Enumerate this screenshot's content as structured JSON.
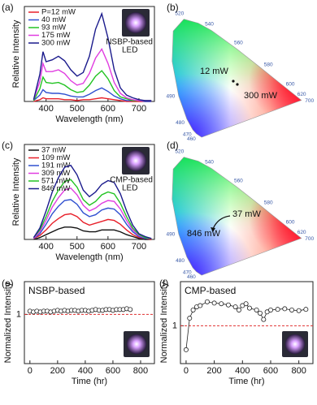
{
  "chart_data": [
    {
      "type": "line",
      "panel_label": "(a)",
      "ylabel": "Relative Intensity",
      "xlabel": "Wavelength (nm)",
      "xlim": [
        330,
        750
      ],
      "xticks": [
        400,
        500,
        600,
        700
      ],
      "ylim": [
        0,
        1.05
      ],
      "inset_label": [
        "NSBP-based",
        "LED"
      ],
      "x": [
        360,
        380,
        390,
        400,
        420,
        440,
        460,
        480,
        500,
        520,
        540,
        560,
        580,
        600,
        620,
        640,
        660,
        680,
        700,
        720,
        740
      ],
      "series": [
        {
          "name": "P=12 mW",
          "color": "#e8202a",
          "values": [
            0,
            0.02,
            0.04,
            0.03,
            0.03,
            0.03,
            0.02,
            0.02,
            0.01,
            0.02,
            0.02,
            0.03,
            0.04,
            0.03,
            0.02,
            0.01,
            0,
            0,
            0,
            0,
            0
          ]
        },
        {
          "name": "40 mW",
          "color": "#3050d0",
          "values": [
            0.01,
            0.07,
            0.13,
            0.1,
            0.09,
            0.09,
            0.08,
            0.06,
            0.05,
            0.05,
            0.08,
            0.12,
            0.15,
            0.11,
            0.06,
            0.03,
            0.01,
            0.01,
            0.01,
            0,
            0
          ]
        },
        {
          "name": "93 mW",
          "color": "#22c322",
          "values": [
            0.01,
            0.14,
            0.27,
            0.21,
            0.2,
            0.21,
            0.18,
            0.13,
            0.1,
            0.11,
            0.18,
            0.28,
            0.34,
            0.25,
            0.12,
            0.05,
            0.03,
            0.01,
            0.01,
            0.01,
            0.01
          ]
        },
        {
          "name": "175 mW",
          "color": "#e03ce0",
          "values": [
            0.02,
            0.22,
            0.42,
            0.33,
            0.33,
            0.35,
            0.31,
            0.23,
            0.18,
            0.2,
            0.31,
            0.48,
            0.58,
            0.42,
            0.21,
            0.09,
            0.04,
            0.02,
            0.01,
            0.01,
            0.01
          ]
        },
        {
          "name": "300 mW",
          "color": "#1a1a8c",
          "values": [
            0.02,
            0.3,
            0.55,
            0.44,
            0.46,
            0.5,
            0.45,
            0.35,
            0.28,
            0.32,
            0.5,
            0.8,
            0.97,
            0.7,
            0.35,
            0.15,
            0.07,
            0.04,
            0.02,
            0.01,
            0.01
          ]
        }
      ]
    },
    {
      "type": "cie",
      "panel_label": "(b)",
      "wavelengths": [
        460,
        470,
        480,
        490,
        520,
        540,
        560,
        580,
        600,
        620,
        700
      ],
      "annotations": [
        "12 mW",
        "300 mW"
      ]
    },
    {
      "type": "line",
      "panel_label": "(c)",
      "ylabel": "Relative Intensity",
      "xlabel": "Wavelength (nm)",
      "xlim": [
        330,
        750
      ],
      "xticks": [
        400,
        500,
        600,
        700
      ],
      "ylim": [
        0,
        1.0
      ],
      "inset_label": [
        "CMP-based",
        "LED"
      ],
      "x": [
        360,
        380,
        400,
        420,
        440,
        460,
        480,
        500,
        520,
        540,
        560,
        580,
        600,
        620,
        640,
        660,
        680,
        700,
        720,
        740
      ],
      "series": [
        {
          "name": "37 mW",
          "color": "#111111",
          "values": [
            0,
            0.02,
            0.05,
            0.08,
            0.11,
            0.13,
            0.13,
            0.12,
            0.09,
            0.08,
            0.08,
            0.1,
            0.1,
            0.1,
            0.08,
            0.05,
            0.03,
            0.01,
            0,
            0
          ]
        },
        {
          "name": "109 mW",
          "color": "#e8202a",
          "values": [
            0.01,
            0.04,
            0.1,
            0.17,
            0.22,
            0.26,
            0.27,
            0.24,
            0.18,
            0.15,
            0.17,
            0.19,
            0.21,
            0.2,
            0.16,
            0.1,
            0.05,
            0.02,
            0.01,
            0
          ]
        },
        {
          "name": "191 mW",
          "color": "#3050d0",
          "values": [
            0.01,
            0.06,
            0.16,
            0.27,
            0.35,
            0.41,
            0.42,
            0.37,
            0.28,
            0.24,
            0.26,
            0.31,
            0.33,
            0.32,
            0.26,
            0.16,
            0.08,
            0.03,
            0.01,
            0.01
          ]
        },
        {
          "name": "309 mW",
          "color": "#e03ce0",
          "values": [
            0.01,
            0.08,
            0.2,
            0.34,
            0.44,
            0.52,
            0.54,
            0.47,
            0.36,
            0.3,
            0.33,
            0.38,
            0.41,
            0.4,
            0.32,
            0.2,
            0.1,
            0.04,
            0.02,
            0.01
          ]
        },
        {
          "name": "571 mW",
          "color": "#22c322",
          "values": [
            0.02,
            0.1,
            0.24,
            0.4,
            0.52,
            0.61,
            0.63,
            0.55,
            0.42,
            0.36,
            0.4,
            0.47,
            0.5,
            0.48,
            0.38,
            0.24,
            0.12,
            0.05,
            0.02,
            0.01
          ]
        },
        {
          "name": "846 mW",
          "color": "#1a1a8c",
          "values": [
            0.02,
            0.12,
            0.3,
            0.5,
            0.65,
            0.76,
            0.78,
            0.68,
            0.52,
            0.45,
            0.5,
            0.58,
            0.62,
            0.6,
            0.48,
            0.3,
            0.15,
            0.06,
            0.03,
            0.01
          ]
        }
      ]
    },
    {
      "type": "cie",
      "panel_label": "(d)",
      "wavelengths": [
        460,
        470,
        480,
        490,
        520,
        540,
        560,
        580,
        600,
        620,
        700
      ],
      "annotations": [
        "37 mW",
        "846 mW"
      ]
    },
    {
      "type": "scatter",
      "panel_label": "(e)",
      "ylabel": "Normalized Intensity",
      "xlabel": "Time (hr)",
      "inset_label": [
        "NSBP-based"
      ],
      "xlim": [
        -40,
        900
      ],
      "xticks": [
        0,
        200,
        400,
        600,
        800
      ],
      "ylim": [
        0.4,
        1.4
      ],
      "yticks": [
        1
      ],
      "reference_line": 1,
      "connect": false,
      "x": [
        0,
        25,
        50,
        75,
        100,
        125,
        150,
        175,
        200,
        225,
        250,
        275,
        300,
        325,
        350,
        375,
        400,
        425,
        450,
        475,
        500,
        525,
        550,
        575,
        600,
        625,
        650,
        675,
        700,
        725
      ],
      "values": [
        1.04,
        1.03,
        1.04,
        1.03,
        1.04,
        1.04,
        1.03,
        1.04,
        1.05,
        1.04,
        1.05,
        1.04,
        1.05,
        1.05,
        1.04,
        1.05,
        1.05,
        1.04,
        1.05,
        1.06,
        1.05,
        1.05,
        1.06,
        1.06,
        1.05,
        1.06,
        1.06,
        1.06,
        1.07,
        1.06
      ]
    },
    {
      "type": "scatter",
      "panel_label": "(f)",
      "ylabel": "Normalized Intensity",
      "xlabel": "Time (hr)",
      "inset_label": [
        "CMP-based"
      ],
      "xlim": [
        -40,
        900
      ],
      "xticks": [
        0,
        200,
        400,
        600,
        800
      ],
      "ylim": [
        0.4,
        1.7
      ],
      "yticks": [
        1
      ],
      "reference_line": 1,
      "connect": true,
      "x": [
        0,
        25,
        50,
        75,
        100,
        150,
        200,
        250,
        300,
        350,
        375,
        400,
        425,
        450,
        500,
        525,
        550,
        575,
        600,
        650,
        700,
        750,
        800,
        850
      ],
      "values": [
        0.62,
        1.12,
        1.25,
        1.3,
        1.32,
        1.38,
        1.36,
        1.35,
        1.33,
        1.3,
        1.25,
        1.32,
        1.35,
        1.28,
        1.25,
        1.2,
        1.1,
        1.22,
        1.25,
        1.26,
        1.27,
        1.25,
        1.24,
        1.26
      ]
    }
  ]
}
